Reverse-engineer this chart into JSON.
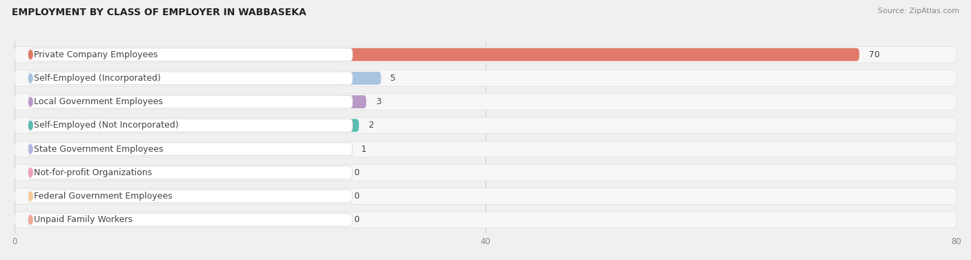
{
  "title": "EMPLOYMENT BY CLASS OF EMPLOYER IN WABBASEKA",
  "source": "Source: ZipAtlas.com",
  "categories": [
    "Private Company Employees",
    "Self-Employed (Incorporated)",
    "Local Government Employees",
    "Self-Employed (Not Incorporated)",
    "State Government Employees",
    "Not-for-profit Organizations",
    "Federal Government Employees",
    "Unpaid Family Workers"
  ],
  "values": [
    70,
    5,
    3,
    2,
    1,
    0,
    0,
    0
  ],
  "bar_colors": [
    "#e07b6a",
    "#a8c4e0",
    "#b89ac8",
    "#5bbcb0",
    "#b0b8e0",
    "#f0a0b8",
    "#f8c898",
    "#f0a898"
  ],
  "xlim_max": 80,
  "xticks": [
    0,
    40,
    80
  ],
  "background_color": "#f0f0f0",
  "row_bg_color": "#ffffff",
  "grid_color": "#cccccc",
  "title_fontsize": 10,
  "source_fontsize": 8,
  "label_fontsize": 9,
  "value_fontsize": 9
}
